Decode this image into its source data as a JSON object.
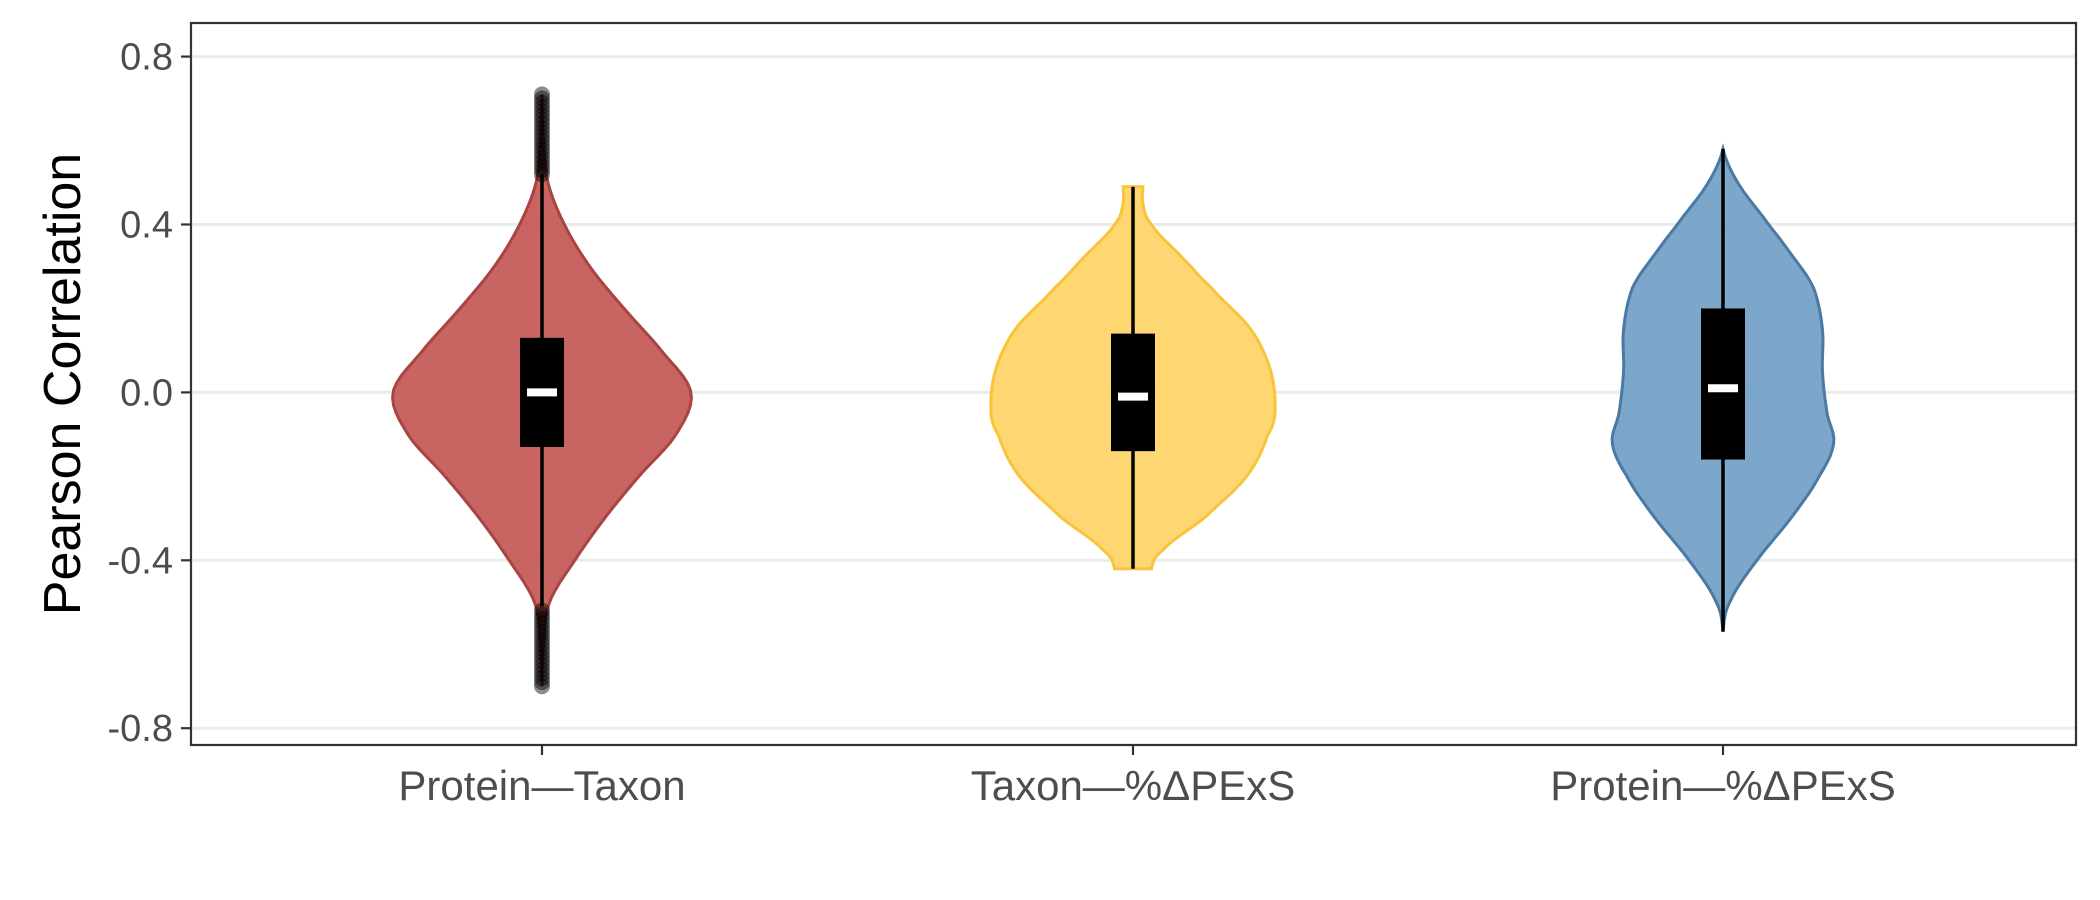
{
  "chart_data": {
    "type": "violin",
    "title": "",
    "xlabel": "",
    "ylabel": "Pearson Correlation",
    "ylim": [
      -0.84,
      0.88
    ],
    "yticks": [
      -0.8,
      -0.4,
      0.0,
      0.4,
      0.8
    ],
    "ytick_labels": [
      "-0.8",
      "-0.4",
      "0.0",
      "0.4",
      "0.8"
    ],
    "grid": "horizontal major gridlines",
    "legend": "none",
    "categories": [
      "Protein—Taxon",
      "Taxon—%ΔPExS",
      "Protein—%ΔPExS"
    ],
    "series": [
      {
        "category": "Protein—Taxon",
        "fill": "#c0504d",
        "stroke": "#a84442",
        "box": {
          "whisker_low": -0.51,
          "q1": -0.13,
          "median": 0.0,
          "q3": 0.13,
          "whisker_high": 0.52
        },
        "outliers_low": [
          -0.52,
          -0.53,
          -0.54,
          -0.55,
          -0.56,
          -0.57,
          -0.58,
          -0.59,
          -0.6,
          -0.61,
          -0.62,
          -0.63,
          -0.64,
          -0.65,
          -0.66,
          -0.67,
          -0.68,
          -0.69,
          -0.7
        ],
        "outliers_high": [
          0.52,
          0.53,
          0.54,
          0.55,
          0.56,
          0.57,
          0.58,
          0.59,
          0.6,
          0.61,
          0.62,
          0.63,
          0.64,
          0.65,
          0.66,
          0.67,
          0.68,
          0.69,
          0.7,
          0.71
        ],
        "violin_range": [
          -0.7,
          0.71
        ],
        "violin_profile": [
          [
            -0.7,
            0.0
          ],
          [
            -0.6,
            0.01
          ],
          [
            -0.5,
            0.05
          ],
          [
            -0.4,
            0.22
          ],
          [
            -0.3,
            0.42
          ],
          [
            -0.2,
            0.65
          ],
          [
            -0.1,
            0.9
          ],
          [
            0.0,
            1.0
          ],
          [
            0.1,
            0.8
          ],
          [
            0.2,
            0.55
          ],
          [
            0.3,
            0.32
          ],
          [
            0.4,
            0.15
          ],
          [
            0.5,
            0.04
          ],
          [
            0.6,
            0.01
          ],
          [
            0.71,
            0.0
          ]
        ]
      },
      {
        "category": "Taxon—%ΔPExS",
        "fill": "#ffd25f",
        "stroke": "#f9c43a",
        "box": {
          "whisker_low": -0.42,
          "q1": -0.14,
          "median": -0.01,
          "q3": 0.14,
          "whisker_high": 0.49
        },
        "outliers_low": [],
        "outliers_high": [],
        "violin_range": [
          -0.42,
          0.49
        ],
        "violin_profile": [
          [
            -0.42,
            0.13
          ],
          [
            -0.38,
            0.2
          ],
          [
            -0.3,
            0.5
          ],
          [
            -0.2,
            0.8
          ],
          [
            -0.1,
            0.95
          ],
          [
            -0.05,
            1.0
          ],
          [
            0.05,
            0.97
          ],
          [
            0.15,
            0.83
          ],
          [
            0.25,
            0.55
          ],
          [
            0.32,
            0.35
          ],
          [
            0.4,
            0.13
          ],
          [
            0.45,
            0.07
          ],
          [
            0.49,
            0.07
          ]
        ]
      },
      {
        "category": "Protein—%ΔPExS",
        "fill": "#6a9bc3",
        "stroke": "#4a7aa3",
        "box": {
          "whisker_low": -0.57,
          "q1": -0.16,
          "median": 0.01,
          "q3": 0.2,
          "whisker_high": 0.58
        },
        "outliers_low": [],
        "outliers_high": [],
        "violin_range": [
          -0.57,
          0.58
        ],
        "violin_profile": [
          [
            -0.57,
            0.0
          ],
          [
            -0.5,
            0.06
          ],
          [
            -0.4,
            0.3
          ],
          [
            -0.3,
            0.6
          ],
          [
            -0.2,
            0.85
          ],
          [
            -0.12,
            0.98
          ],
          [
            -0.05,
            0.92
          ],
          [
            0.05,
            0.88
          ],
          [
            0.15,
            0.88
          ],
          [
            0.25,
            0.8
          ],
          [
            0.33,
            0.6
          ],
          [
            0.42,
            0.35
          ],
          [
            0.5,
            0.13
          ],
          [
            0.58,
            0.0
          ]
        ]
      }
    ]
  }
}
